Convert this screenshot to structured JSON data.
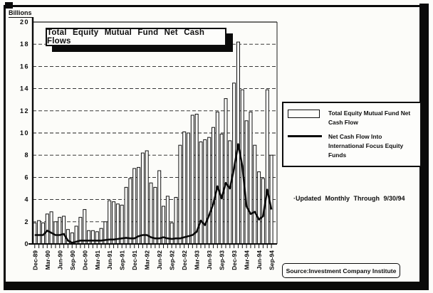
{
  "title": "Total Equity Mutual Fund Net Cash Flows",
  "legend": {
    "items": [
      {
        "swatch": "bar-swatch",
        "label": "Total Equity Mutual Fund Net Cash Flow"
      },
      {
        "swatch": "line-swatch",
        "label": "Net Cash Flow Into International Focus Equity Funds"
      }
    ]
  },
  "note": "·Updated Monthly Through 9/30/94",
  "source": "Source:Investment Company Institute",
  "chart_data": {
    "type": "bar",
    "subtype": "combo-bar-line",
    "title": "Total Equity Mutual Fund Net Cash Flows",
    "ylabel": "Billions",
    "xlabel": "",
    "ylim": [
      0,
      20
    ],
    "ytick_step": 2,
    "ytick_labels": [
      "20",
      "18",
      "16",
      "14",
      "12",
      "10",
      "8",
      "6",
      "4",
      "2",
      "0"
    ],
    "grid": "dashed-horizontal",
    "legend_position": "right",
    "xtick_every": 3,
    "xtick_labels": [
      "Dec-89",
      "Mar-90",
      "Jun-90",
      "Sep-90",
      "Dec-90",
      "Mar-91",
      "Jun-91",
      "Sep-91",
      "Dec-91",
      "Mar-92",
      "Jun-92",
      "Sep-92",
      "Dec-92",
      "Mar-93",
      "Jun-93",
      "Sep-93",
      "Dec-93",
      "Mar-94",
      "Jun-94",
      "Sep-94"
    ],
    "categories": [
      "Dec-89",
      "Jan-90",
      "Feb-90",
      "Mar-90",
      "Apr-90",
      "May-90",
      "Jun-90",
      "Jul-90",
      "Aug-90",
      "Sep-90",
      "Oct-90",
      "Nov-90",
      "Dec-90",
      "Jan-91",
      "Feb-91",
      "Mar-91",
      "Apr-91",
      "May-91",
      "Jun-91",
      "Jul-91",
      "Aug-91",
      "Sep-91",
      "Oct-91",
      "Nov-91",
      "Dec-91",
      "Jan-92",
      "Feb-92",
      "Mar-92",
      "Apr-92",
      "May-92",
      "Jun-92",
      "Jul-92",
      "Aug-92",
      "Sep-92",
      "Oct-92",
      "Nov-92",
      "Dec-92",
      "Jan-93",
      "Feb-93",
      "Mar-93",
      "Apr-93",
      "May-93",
      "Jun-93",
      "Jul-93",
      "Aug-93",
      "Sep-93",
      "Oct-93",
      "Nov-93",
      "Dec-93",
      "Jan-94",
      "Feb-94",
      "Mar-94",
      "Apr-94",
      "May-94",
      "Jun-94",
      "Jul-94",
      "Aug-94",
      "Sep-94"
    ],
    "series": [
      {
        "name": "Total Equity Mutual Fund Net Cash Flow",
        "type": "bar",
        "values": [
          1.9,
          2.1,
          1.9,
          2.7,
          2.9,
          2.0,
          2.4,
          2.5,
          1.3,
          1.0,
          1.6,
          2.4,
          3.1,
          1.2,
          1.2,
          1.1,
          1.4,
          2.0,
          3.9,
          3.8,
          3.6,
          3.5,
          5.1,
          5.9,
          6.8,
          6.9,
          8.2,
          8.4,
          5.5,
          5.1,
          6.6,
          3.4,
          4.3,
          1.9,
          4.2,
          8.9,
          10.1,
          10.0,
          11.6,
          11.7,
          9.2,
          9.4,
          9.6,
          10.5,
          11.9,
          9.9,
          13.1,
          9.3,
          14.5,
          18.2,
          13.9,
          11.1,
          11.9,
          8.9,
          6.5,
          5.9,
          13.9,
          8.0
        ]
      },
      {
        "name": "Net Cash Flow Into International Focus Equity Funds",
        "type": "line",
        "values": [
          0.8,
          0.8,
          0.8,
          1.2,
          1.0,
          0.8,
          0.8,
          0.9,
          0.3,
          0.1,
          0.2,
          0.3,
          0.3,
          0.3,
          0.3,
          0.3,
          0.3,
          0.35,
          0.4,
          0.4,
          0.45,
          0.5,
          0.55,
          0.5,
          0.5,
          0.7,
          0.8,
          0.8,
          0.6,
          0.5,
          0.5,
          0.6,
          0.5,
          0.45,
          0.5,
          0.5,
          0.6,
          0.7,
          0.8,
          1.1,
          2.1,
          1.7,
          2.6,
          3.6,
          5.2,
          4.1,
          5.5,
          5.0,
          6.8,
          9.0,
          7.0,
          3.4,
          2.7,
          2.9,
          2.2,
          2.5,
          4.9,
          3.1
        ]
      }
    ]
  }
}
